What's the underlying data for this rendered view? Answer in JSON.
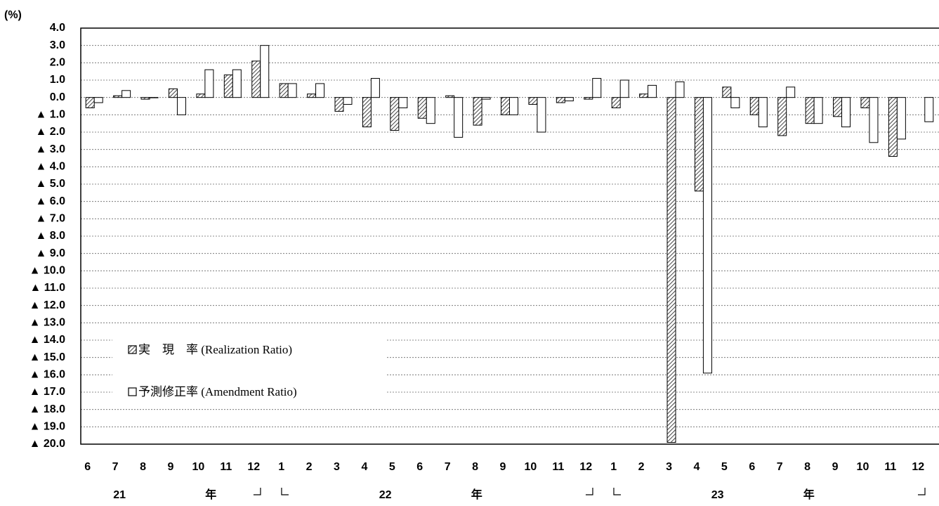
{
  "chart_data": {
    "type": "bar",
    "y_unit": "(%)",
    "categories": [
      "6",
      "7",
      "8",
      "9",
      "10",
      "11",
      "12",
      "1",
      "2",
      "3",
      "4",
      "5",
      "6",
      "7",
      "8",
      "9",
      "10",
      "11",
      "12",
      "1",
      "2",
      "3",
      "4",
      "5",
      "6",
      "7",
      "8",
      "9",
      "10",
      "11",
      "12"
    ],
    "groups": [
      {
        "label": "21",
        "unit": "年"
      },
      {
        "label": "22",
        "unit": "年"
      },
      {
        "label": "23",
        "unit": "年"
      }
    ],
    "series": [
      {
        "name": "実　現　率 (Realization Ratio)",
        "color": "#555555",
        "pattern": "hatch",
        "values": [
          -0.6,
          0.1,
          -0.1,
          0.5,
          0.2,
          1.3,
          2.1,
          0.8,
          0.2,
          -0.8,
          -1.7,
          -1.9,
          -1.2,
          0.1,
          -1.6,
          -1.0,
          -0.4,
          -0.3,
          -0.1,
          -0.6,
          0.2,
          -19.9,
          -5.4,
          0.6,
          -1.0,
          -2.2,
          -1.5,
          -1.1,
          -0.6,
          -3.4,
          null
        ]
      },
      {
        "name": "予測修正率 (Amendment Ratio)",
        "color": "#ffffff",
        "pattern": "solid",
        "values": [
          -0.3,
          0.4,
          0.0,
          -1.0,
          1.6,
          1.6,
          3.0,
          0.8,
          0.8,
          -0.4,
          1.1,
          -0.6,
          -1.5,
          -2.3,
          -0.1,
          -1.0,
          -2.0,
          -0.2,
          1.1,
          1.0,
          0.7,
          0.9,
          -15.9,
          -0.6,
          -1.7,
          0.6,
          -1.5,
          -1.7,
          -2.6,
          -2.4,
          -1.4
        ]
      }
    ],
    "ylim": [
      -20,
      4
    ],
    "yticks": [
      {
        "value": 4,
        "label": "4.0"
      },
      {
        "value": 3,
        "label": "3.0"
      },
      {
        "value": 2,
        "label": "2.0"
      },
      {
        "value": 1,
        "label": "1.0"
      },
      {
        "value": 0,
        "label": "0.0"
      },
      {
        "value": -1,
        "label": "▲ 1.0"
      },
      {
        "value": -2,
        "label": "▲ 2.0"
      },
      {
        "value": -3,
        "label": "▲ 3.0"
      },
      {
        "value": -4,
        "label": "▲ 4.0"
      },
      {
        "value": -5,
        "label": "▲ 5.0"
      },
      {
        "value": -6,
        "label": "▲ 6.0"
      },
      {
        "value": -7,
        "label": "▲ 7.0"
      },
      {
        "value": -8,
        "label": "▲ 8.0"
      },
      {
        "value": -9,
        "label": "▲ 9.0"
      },
      {
        "value": -10,
        "label": "▲ 10.0"
      },
      {
        "value": -11,
        "label": "▲ 11.0"
      },
      {
        "value": -12,
        "label": "▲ 12.0"
      },
      {
        "value": -13,
        "label": "▲ 13.0"
      },
      {
        "value": -14,
        "label": "▲ 14.0"
      },
      {
        "value": -15,
        "label": "▲ 15.0"
      },
      {
        "value": -16,
        "label": "▲ 16.0"
      },
      {
        "value": -17,
        "label": "▲ 17.0"
      },
      {
        "value": -18,
        "label": "▲ 18.0"
      },
      {
        "value": -19,
        "label": "▲ 19.0"
      },
      {
        "value": -20,
        "label": "▲ 20.0"
      }
    ],
    "grid": true
  }
}
